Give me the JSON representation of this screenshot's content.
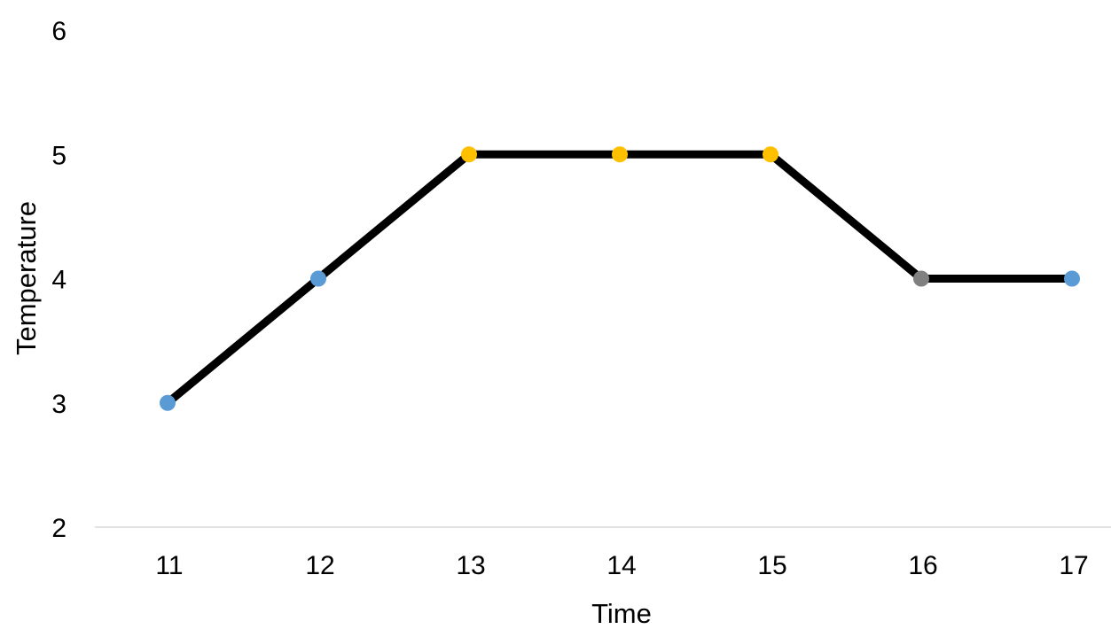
{
  "chart_data": {
    "type": "line",
    "xlabel": "Time",
    "ylabel": "Temperature",
    "x": [
      11,
      12,
      13,
      14,
      15,
      16,
      17
    ],
    "x_tick_labels": [
      "11",
      "12",
      "13",
      "14",
      "15",
      "16",
      "17"
    ],
    "y_tick_values": [
      2,
      3,
      4,
      5,
      6
    ],
    "y_tick_labels": [
      "2",
      "3",
      "4",
      "5",
      "6"
    ],
    "ylim": [
      2,
      6
    ],
    "grid": false,
    "legend": "none",
    "series": [
      {
        "values": [
          3,
          4,
          5,
          5,
          5,
          4,
          4
        ],
        "line_color": "#000000",
        "point_colors": [
          "#5b9bd5",
          "#5b9bd5",
          "#ffc000",
          "#ffc000",
          "#ffc000",
          "#808080",
          "#5b9bd5"
        ]
      }
    ],
    "axis_line_color": "#d9d9d9"
  }
}
